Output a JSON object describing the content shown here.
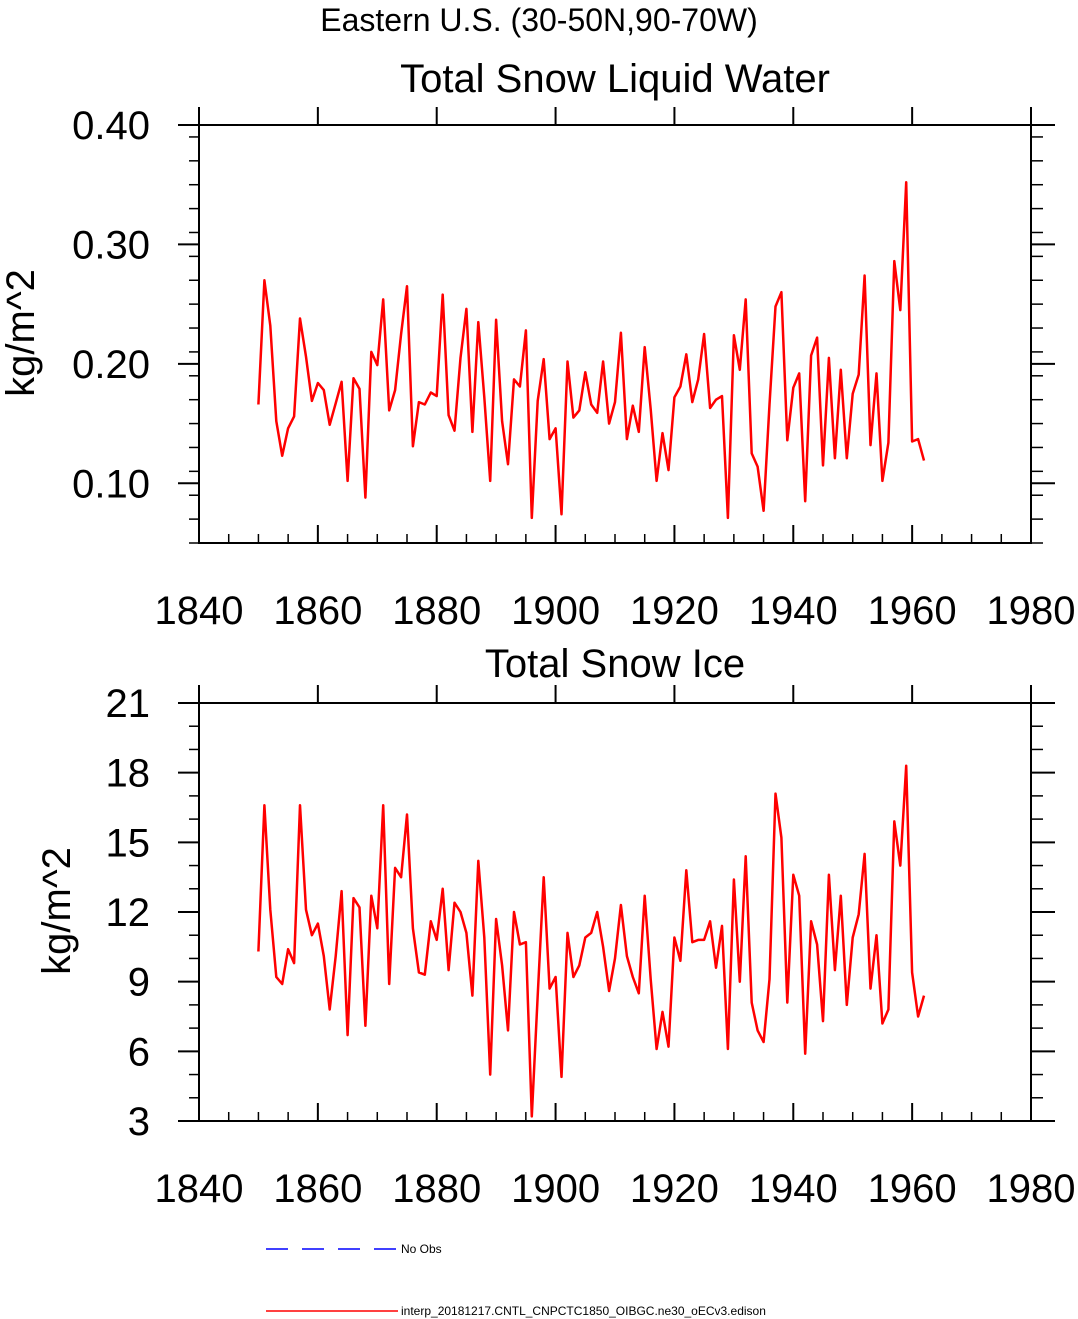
{
  "figure": {
    "suptitle": "Eastern U.S. (30-50N,90-70W)"
  },
  "chart_data": [
    {
      "type": "line",
      "title": "Total Snow Liquid Water",
      "xlabel": "",
      "ylabel": "kg/m^2",
      "xlim": [
        1840,
        1980
      ],
      "ylim": [
        0.05,
        0.4
      ],
      "xticks": [
        1840,
        1860,
        1880,
        1900,
        1920,
        1940,
        1960,
        1980
      ],
      "yticks": [
        0.1,
        0.2,
        0.3,
        0.4
      ],
      "ytick_labels": [
        "0.10",
        "0.20",
        "0.30",
        "0.40"
      ],
      "grid": false,
      "series": [
        {
          "name": "interp_20181217.CNTL_CNPCTC1850_OIBGC.ne30_oECv3.edison",
          "color": "#ff0000",
          "x": [
            1850,
            1851,
            1852,
            1853,
            1854,
            1855,
            1856,
            1857,
            1858,
            1859,
            1860,
            1861,
            1862,
            1863,
            1864,
            1865,
            1866,
            1867,
            1868,
            1869,
            1870,
            1871,
            1872,
            1873,
            1874,
            1875,
            1876,
            1877,
            1878,
            1879,
            1880,
            1881,
            1882,
            1883,
            1884,
            1885,
            1886,
            1887,
            1888,
            1889,
            1890,
            1891,
            1892,
            1893,
            1894,
            1895,
            1896,
            1897,
            1898,
            1899,
            1900,
            1901,
            1902,
            1903,
            1904,
            1905,
            1906,
            1907,
            1908,
            1909,
            1910,
            1911,
            1912,
            1913,
            1914,
            1915,
            1916,
            1917,
            1918,
            1919,
            1920,
            1921,
            1922,
            1923,
            1924,
            1925,
            1926,
            1927,
            1928,
            1929,
            1930,
            1931,
            1932,
            1933,
            1934,
            1935,
            1936,
            1937,
            1938,
            1939,
            1940,
            1941,
            1942,
            1943,
            1944,
            1945,
            1946,
            1947,
            1948,
            1949,
            1950,
            1951,
            1952,
            1953,
            1954,
            1955,
            1956,
            1957,
            1958,
            1959,
            1960,
            1961,
            1962
          ],
          "values": [
            0.166,
            0.27,
            0.232,
            0.152,
            0.123,
            0.146,
            0.156,
            0.238,
            0.206,
            0.169,
            0.184,
            0.178,
            0.149,
            0.167,
            0.185,
            0.102,
            0.188,
            0.179,
            0.088,
            0.21,
            0.199,
            0.254,
            0.161,
            0.178,
            0.225,
            0.265,
            0.131,
            0.168,
            0.166,
            0.176,
            0.173,
            0.258,
            0.157,
            0.144,
            0.205,
            0.246,
            0.143,
            0.235,
            0.172,
            0.102,
            0.237,
            0.152,
            0.116,
            0.187,
            0.181,
            0.228,
            0.071,
            0.169,
            0.204,
            0.137,
            0.146,
            0.074,
            0.202,
            0.155,
            0.161,
            0.193,
            0.166,
            0.159,
            0.202,
            0.15,
            0.168,
            0.226,
            0.137,
            0.165,
            0.143,
            0.214,
            0.162,
            0.102,
            0.142,
            0.111,
            0.172,
            0.181,
            0.208,
            0.168,
            0.187,
            0.225,
            0.163,
            0.17,
            0.173,
            0.071,
            0.224,
            0.195,
            0.254,
            0.125,
            0.114,
            0.077,
            0.166,
            0.248,
            0.26,
            0.136,
            0.18,
            0.192,
            0.085,
            0.207,
            0.222,
            0.115,
            0.205,
            0.121,
            0.195,
            0.121,
            0.175,
            0.191,
            0.274,
            0.132,
            0.192,
            0.102,
            0.134,
            0.286,
            0.245,
            0.352,
            0.135,
            0.137,
            0.119
          ]
        }
      ]
    },
    {
      "type": "line",
      "title": "Total Snow Ice",
      "xlabel": "",
      "ylabel": "kg/m^2",
      "xlim": [
        1840,
        1980
      ],
      "ylim": [
        3,
        21
      ],
      "xticks": [
        1840,
        1860,
        1880,
        1900,
        1920,
        1940,
        1960,
        1980
      ],
      "yticks": [
        3,
        6,
        9,
        12,
        15,
        18,
        21
      ],
      "ytick_labels": [
        "3",
        "6",
        "9",
        "12",
        "15",
        "18",
        "21"
      ],
      "grid": false,
      "series": [
        {
          "name": "interp_20181217.CNTL_CNPCTC1850_OIBGC.ne30_oECv3.edison",
          "color": "#ff0000",
          "x": [
            1850,
            1851,
            1852,
            1853,
            1854,
            1855,
            1856,
            1857,
            1858,
            1859,
            1860,
            1861,
            1862,
            1863,
            1864,
            1865,
            1866,
            1867,
            1868,
            1869,
            1870,
            1871,
            1872,
            1873,
            1874,
            1875,
            1876,
            1877,
            1878,
            1879,
            1880,
            1881,
            1882,
            1883,
            1884,
            1885,
            1886,
            1887,
            1888,
            1889,
            1890,
            1891,
            1892,
            1893,
            1894,
            1895,
            1896,
            1897,
            1898,
            1899,
            1900,
            1901,
            1902,
            1903,
            1904,
            1905,
            1906,
            1907,
            1908,
            1909,
            1910,
            1911,
            1912,
            1913,
            1914,
            1915,
            1916,
            1917,
            1918,
            1919,
            1920,
            1921,
            1922,
            1923,
            1924,
            1925,
            1926,
            1927,
            1928,
            1929,
            1930,
            1931,
            1932,
            1933,
            1934,
            1935,
            1936,
            1937,
            1938,
            1939,
            1940,
            1941,
            1942,
            1943,
            1944,
            1945,
            1946,
            1947,
            1948,
            1949,
            1950,
            1951,
            1952,
            1953,
            1954,
            1955,
            1956,
            1957,
            1958,
            1959,
            1960,
            1961,
            1962
          ],
          "values": [
            10.3,
            16.6,
            12.1,
            9.2,
            8.9,
            10.4,
            9.8,
            16.6,
            12.1,
            11.0,
            11.5,
            10.1,
            7.8,
            10.1,
            12.9,
            6.7,
            12.6,
            12.2,
            7.1,
            12.7,
            11.3,
            16.6,
            8.9,
            13.9,
            13.5,
            16.2,
            11.3,
            9.4,
            9.3,
            11.6,
            10.8,
            13.0,
            9.5,
            12.4,
            12.0,
            11.1,
            8.4,
            14.2,
            10.9,
            5.0,
            11.7,
            9.7,
            6.9,
            12.0,
            10.6,
            10.7,
            3.2,
            8.4,
            13.5,
            8.7,
            9.2,
            4.9,
            11.1,
            9.2,
            9.7,
            10.9,
            11.1,
            12.0,
            10.5,
            8.6,
            10.0,
            12.3,
            10.1,
            9.2,
            8.5,
            12.7,
            9.1,
            6.1,
            7.7,
            6.2,
            10.9,
            9.9,
            13.8,
            10.7,
            10.8,
            10.8,
            11.6,
            9.6,
            11.4,
            6.1,
            13.4,
            9.0,
            14.4,
            8.1,
            6.9,
            6.4,
            9.1,
            17.1,
            15.2,
            8.1,
            13.6,
            12.7,
            5.9,
            11.6,
            10.6,
            7.3,
            13.6,
            9.5,
            12.7,
            8.0,
            10.9,
            11.9,
            14.5,
            8.7,
            11.0,
            7.2,
            7.8,
            15.9,
            14.0,
            18.3,
            9.4,
            7.5,
            8.4
          ]
        }
      ]
    }
  ],
  "legend": {
    "no_obs_label": "No Obs",
    "no_obs_color": "#0000ff",
    "series_label": "interp_20181217.CNTL_CNPCTC1850_OIBGC.ne30_oECv3.edison",
    "series_color": "#ff0000"
  }
}
